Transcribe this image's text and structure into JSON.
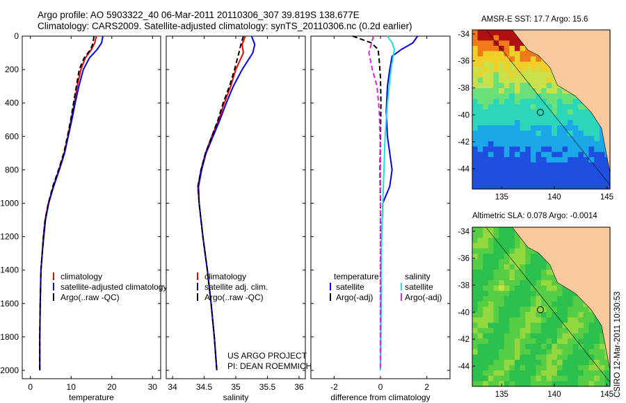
{
  "header": {
    "title_line1": "Argo profile: AO 5903322_40 06-Mar-2011 20110306_307 39.819S 138.677E",
    "title_line2": "Climatology: CARS2009. Satellite-adjusted climatology: synTS_20110306.nc (0.2d earlier)"
  },
  "maps": {
    "sst_title": "AMSR-E SST: 17.7 Argo: 15.6",
    "sla_title": "Altimetric SLA: 0.078 Argo: -0.0014",
    "yticks": [
      "-34",
      "-36",
      "-38",
      "-40",
      "-42",
      "-44"
    ],
    "xticks": [
      "135",
      "140",
      "145"
    ],
    "land_color": "#f8c99c",
    "marker": {
      "lon": 138.677,
      "lat": -39.819
    }
  },
  "footer": {
    "credit": "CSIRO 12-Mar-2011 10:30:53",
    "project_line1": "US ARGO PROJECT",
    "project_line2": "PI: DEAN ROEMMICH"
  },
  "colors": {
    "climatology": "#ee0000",
    "satellite": "#0000ee",
    "argo": "#000000",
    "salinity_sat": "#22dddd",
    "salinity_argo": "#dd22dd"
  },
  "chart_data": [
    {
      "type": "line",
      "xlabel": "temperature",
      "ylabel": "",
      "xlim": [
        -2,
        32
      ],
      "ylim": [
        2050,
        0
      ],
      "xticks": [
        "0",
        "10",
        "20",
        "30"
      ],
      "yticks": [
        "0",
        "200",
        "400",
        "600",
        "800",
        "1000",
        "1200",
        "1400",
        "1600",
        "1800",
        "2000"
      ],
      "legend": [
        "climatology",
        "satellite-adjusted climatology",
        "Argo(..raw -QC)"
      ],
      "series": [
        {
          "name": "climatology",
          "color": "#ee0000",
          "x": [
            16.2,
            15.8,
            15.0,
            13.5,
            12.4,
            11.5,
            10.8,
            10.0,
            9.2,
            8.3,
            7.0,
            5.6,
            4.4,
            3.6,
            3.2,
            2.9,
            2.6,
            2.4,
            2.3,
            2.3
          ],
          "y": [
            0,
            40,
            80,
            130,
            200,
            300,
            400,
            500,
            600,
            700,
            800,
            900,
            1000,
            1100,
            1200,
            1300,
            1400,
            1600,
            1800,
            2000
          ]
        },
        {
          "name": "satellite-adjusted climatology",
          "color": "#0000ee",
          "x": [
            17.8,
            17.5,
            16.4,
            14.5,
            13.0,
            11.9,
            11.0,
            10.2,
            9.3,
            8.4,
            7.1,
            5.7,
            4.5,
            3.7,
            3.3,
            2.9,
            2.6,
            2.4,
            2.3,
            2.3
          ],
          "y": [
            0,
            40,
            80,
            130,
            200,
            300,
            400,
            500,
            600,
            700,
            800,
            900,
            1000,
            1100,
            1200,
            1300,
            1400,
            1600,
            1800,
            2000
          ]
        },
        {
          "name": "Argo(..raw -QC)",
          "color": "#000000",
          "x": [
            15.6,
            15.4,
            14.8,
            13.2,
            12.0,
            11.3,
            10.6,
            9.9,
            9.1,
            8.2,
            6.9,
            5.5,
            4.4,
            3.6,
            3.2,
            2.9,
            2.6,
            2.4,
            2.3,
            2.3
          ],
          "y": [
            0,
            40,
            80,
            130,
            200,
            300,
            400,
            500,
            600,
            700,
            800,
            900,
            1000,
            1100,
            1200,
            1300,
            1400,
            1600,
            1800,
            2000
          ]
        }
      ]
    },
    {
      "type": "line",
      "xlabel": "salinity",
      "xlim": [
        33.9,
        36.1
      ],
      "ylim": [
        2050,
        0
      ],
      "xticks": [
        "34",
        "34.5",
        "35",
        "35.5",
        "36"
      ],
      "legend": [
        "climatology",
        "satellite adj. clim.",
        "Argo(..raw -QC)"
      ],
      "series": [
        {
          "name": "climatology",
          "color": "#ee0000",
          "x": [
            35.15,
            35.1,
            35.12,
            35.0,
            34.92,
            34.82,
            34.73,
            34.62,
            34.52,
            34.45,
            34.4,
            34.42,
            34.48,
            34.55,
            34.61,
            34.66,
            34.7
          ],
          "y": [
            0,
            50,
            100,
            200,
            300,
            400,
            500,
            600,
            700,
            800,
            900,
            1000,
            1200,
            1400,
            1600,
            1800,
            2000
          ]
        },
        {
          "name": "satellite adj. clim.",
          "color": "#0000ee",
          "x": [
            35.25,
            35.3,
            35.27,
            35.1,
            34.96,
            34.85,
            34.75,
            34.64,
            34.53,
            34.46,
            34.41,
            34.42,
            34.48,
            34.55,
            34.61,
            34.66,
            34.7
          ],
          "y": [
            0,
            50,
            100,
            200,
            300,
            400,
            500,
            600,
            700,
            800,
            900,
            1000,
            1200,
            1400,
            1600,
            1800,
            2000
          ]
        },
        {
          "name": "Argo(..raw -QC)",
          "color": "#000000",
          "x": [
            35.12,
            35.08,
            35.05,
            34.98,
            34.9,
            34.8,
            34.72,
            34.62,
            34.52,
            34.45,
            34.4,
            34.42,
            34.48,
            34.55,
            34.61,
            34.66,
            34.7
          ],
          "y": [
            0,
            50,
            100,
            200,
            300,
            400,
            500,
            600,
            700,
            800,
            900,
            1000,
            1200,
            1400,
            1600,
            1800,
            2000
          ]
        }
      ]
    },
    {
      "type": "line",
      "xlabel": "difference from climatology",
      "xlim": [
        -3,
        3
      ],
      "ylim": [
        2050,
        0
      ],
      "xticks": [
        "-2",
        "0",
        "2"
      ],
      "legend_left": {
        "title": "temperature",
        "items": [
          "satellite",
          "Argo(-adj)"
        ]
      },
      "legend_right": {
        "title": "salinity",
        "items": [
          "satellite",
          "Argo(-adj)"
        ]
      },
      "series": [
        {
          "name": "temperature satellite",
          "color": "#0000ee",
          "x": [
            1.6,
            1.4,
            0.9,
            0.5,
            0.4,
            0.3,
            0.25,
            0.3,
            0.5,
            0.4,
            0.1,
            0.05,
            0.03,
            0.02,
            0.0
          ],
          "y": [
            0,
            40,
            80,
            120,
            200,
            300,
            450,
            600,
            800,
            900,
            1000,
            1200,
            1400,
            1700,
            2000
          ]
        },
        {
          "name": "temperature Argo(-adj)",
          "color": "#000000",
          "x": [
            -1.2,
            -0.8,
            -0.4,
            -0.1,
            -0.05,
            0.0,
            0.02,
            0.0,
            -0.02,
            0.0,
            0.0,
            0.0,
            0.0
          ],
          "y": [
            0,
            20,
            40,
            80,
            150,
            250,
            400,
            600,
            800,
            1000,
            1400,
            1700,
            2000
          ]
        },
        {
          "name": "salinity satellite",
          "color": "#22dddd",
          "x": [
            0.3,
            0.5,
            0.6,
            0.45,
            0.3,
            0.2,
            0.15,
            0.1,
            0.05,
            0.02,
            0.0
          ],
          "y": [
            0,
            40,
            80,
            200,
            400,
            600,
            800,
            1000,
            1200,
            1600,
            2000
          ]
        },
        {
          "name": "salinity Argo(-adj)",
          "color": "#dd22dd",
          "x": [
            -0.3,
            -0.5,
            -0.35,
            -0.15,
            -0.05,
            0.0,
            0.0,
            0.0
          ],
          "y": [
            0,
            100,
            200,
            300,
            450,
            700,
            1200,
            2000
          ]
        }
      ]
    }
  ]
}
